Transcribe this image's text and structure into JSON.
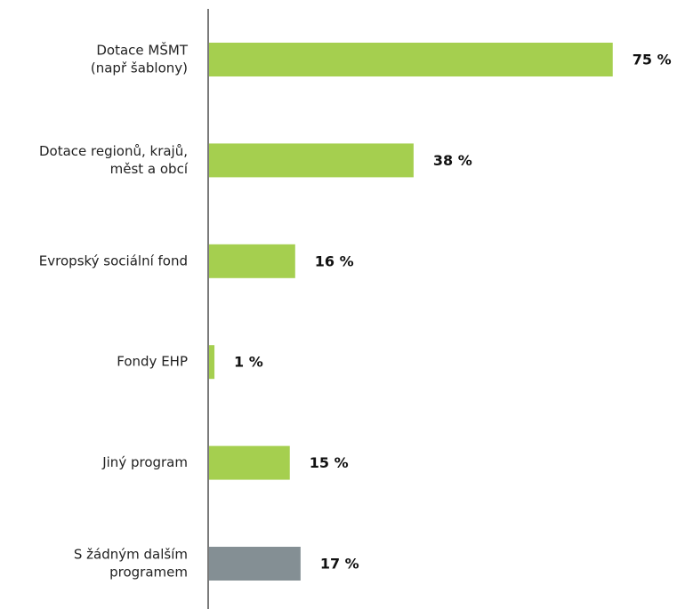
{
  "chart_data": {
    "type": "hbar",
    "categories": [
      [
        "Dotace MŠMT",
        "(např šablony)"
      ],
      [
        "Dotace regionů, krajů,",
        "měst a obcí"
      ],
      [
        "Evropský sociální fond"
      ],
      [
        "Fondy EHP"
      ],
      [
        "Jiný program"
      ],
      [
        "S žádným dalším",
        "programem"
      ]
    ],
    "values": [
      75,
      38,
      16,
      1,
      15,
      17
    ],
    "value_labels": [
      "75 %",
      "38 %",
      "16 %",
      "1 %",
      "15 %",
      "17 %"
    ],
    "colors": [
      "#a5cf4f",
      "#a5cf4f",
      "#a5cf4f",
      "#a5cf4f",
      "#a5cf4f",
      "#848f94"
    ]
  }
}
